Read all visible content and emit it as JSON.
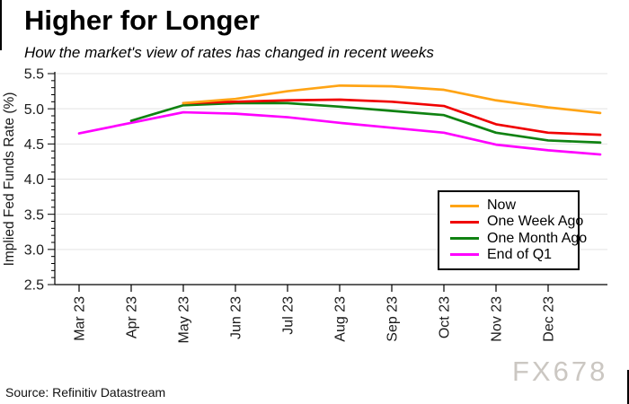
{
  "title": "Higher for Longer",
  "subtitle": "How the market's view of rates has changed in recent weeks",
  "source": "Source: Refinitiv Datastream",
  "watermark": "FX678",
  "colors": {
    "now": "#FFA415",
    "one_week_ago": "#F00000",
    "one_month_ago": "#108212",
    "end_of_q1": "#FF00FF",
    "gridline": "#E3E3E3",
    "axis": "#000000",
    "tick_label": "#1a1a1a",
    "watermark": "#CBC7C2"
  },
  "chart_data": {
    "type": "line",
    "title": "Higher for Longer",
    "subtitle": "How the market's view of rates has changed in recent weeks",
    "xlabel": "",
    "ylabel": "Implied Fed Funds Rate (%)",
    "ylim": [
      2.5,
      5.5
    ],
    "y_major_step": 0.5,
    "y_minor_step": 0.1,
    "y_tick_labels": [
      "2.5",
      "3.0",
      "3.5",
      "4.0",
      "4.5",
      "5.0",
      "5.5"
    ],
    "grid": "horizontal-major-only",
    "legend_position": "inside-right-middle-boxed",
    "x_tick_labels": [
      "Mar 23",
      "Apr 23",
      "May 23",
      "Jun 23",
      "Jul 23",
      "Aug 23",
      "Sep 23",
      "Oct 23",
      "Nov 23",
      "Dec 23"
    ],
    "x_note": "all series extend one unlabeled point beyond Dec 23 to the plot edge",
    "series": [
      {
        "name": "Now",
        "color": "#FFA415",
        "values": [
          null,
          null,
          5.08,
          5.14,
          5.25,
          5.33,
          5.32,
          5.27,
          5.12,
          5.02,
          4.94
        ]
      },
      {
        "name": "One Week Ago",
        "color": "#F00000",
        "values": [
          null,
          null,
          5.08,
          5.1,
          5.12,
          5.13,
          5.1,
          5.04,
          4.78,
          4.66,
          4.63
        ]
      },
      {
        "name": "One Month Ago",
        "color": "#108212",
        "values": [
          null,
          4.83,
          5.05,
          5.08,
          5.08,
          5.03,
          4.97,
          4.91,
          4.66,
          4.55,
          4.52
        ]
      },
      {
        "name": "End of Q1",
        "color": "#FF00FF",
        "values": [
          4.65,
          4.8,
          4.95,
          4.93,
          4.88,
          4.8,
          4.73,
          4.66,
          4.49,
          4.41,
          4.35
        ]
      }
    ]
  }
}
